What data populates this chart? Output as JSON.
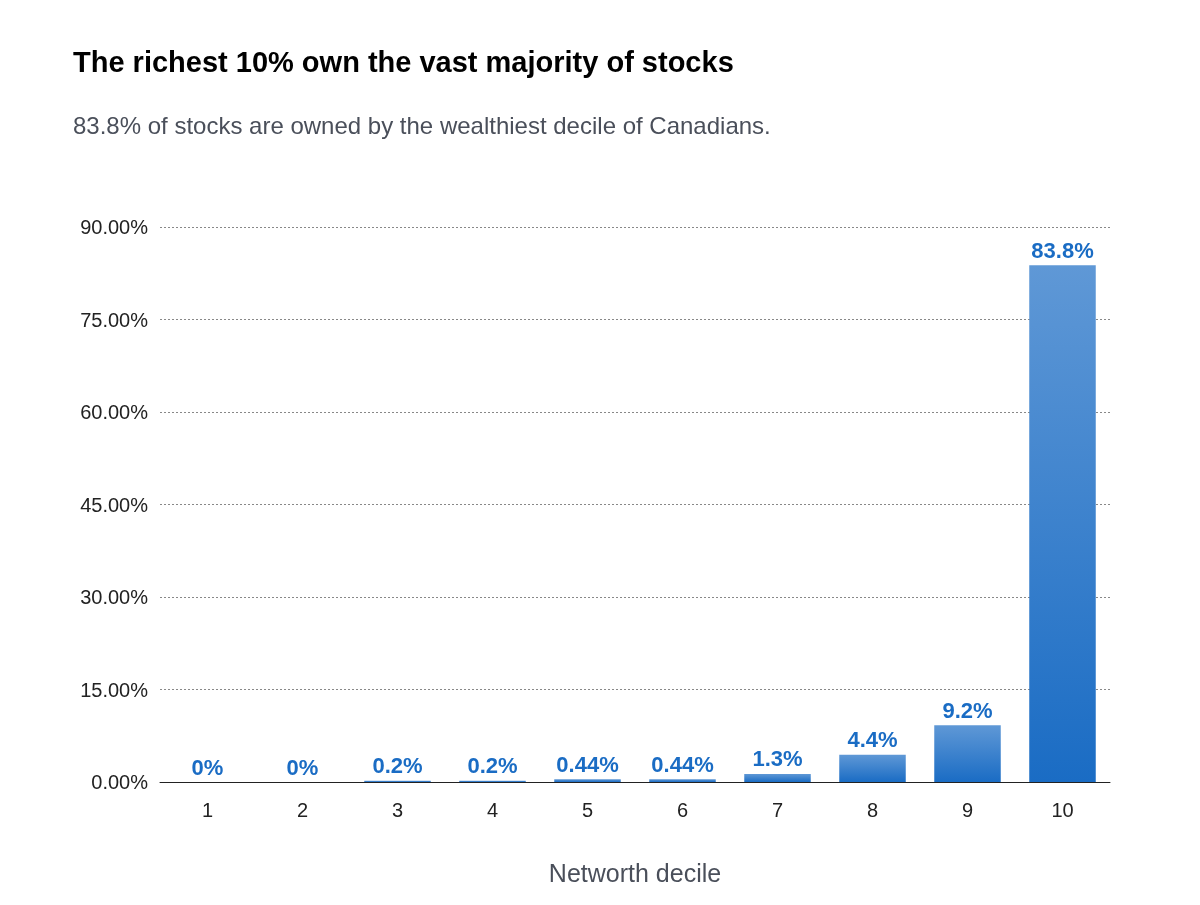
{
  "chart_data": {
    "type": "bar",
    "title": "The richest 10% own the vast majority of stocks",
    "subtitle": "83.8% of stocks are owned by the wealthiest decile of Canadians.",
    "xlabel": "Networth decile",
    "categories": [
      "1",
      "2",
      "3",
      "4",
      "5",
      "6",
      "7",
      "8",
      "9",
      "10"
    ],
    "values": [
      0,
      0,
      0.2,
      0.2,
      0.44,
      0.44,
      1.3,
      4.4,
      9.2,
      83.8
    ],
    "value_labels": [
      "0%",
      "0%",
      "0.2%",
      "0.2%",
      "0.44%",
      "0.44%",
      "1.3%",
      "4.4%",
      "9.2%",
      "83.8%"
    ],
    "color": "#1a6cc4",
    "ylim": [
      0,
      90
    ],
    "yticks": [
      {
        "value": 0,
        "label": "0.00%"
      },
      {
        "value": 15,
        "label": "15.00%"
      },
      {
        "value": 30,
        "label": "30.00%"
      },
      {
        "value": 45,
        "label": "45.00%"
      },
      {
        "value": 60,
        "label": "60.00%"
      },
      {
        "value": 75,
        "label": "75.00%"
      },
      {
        "value": 90,
        "label": "90.00%"
      }
    ],
    "grid": "y"
  }
}
